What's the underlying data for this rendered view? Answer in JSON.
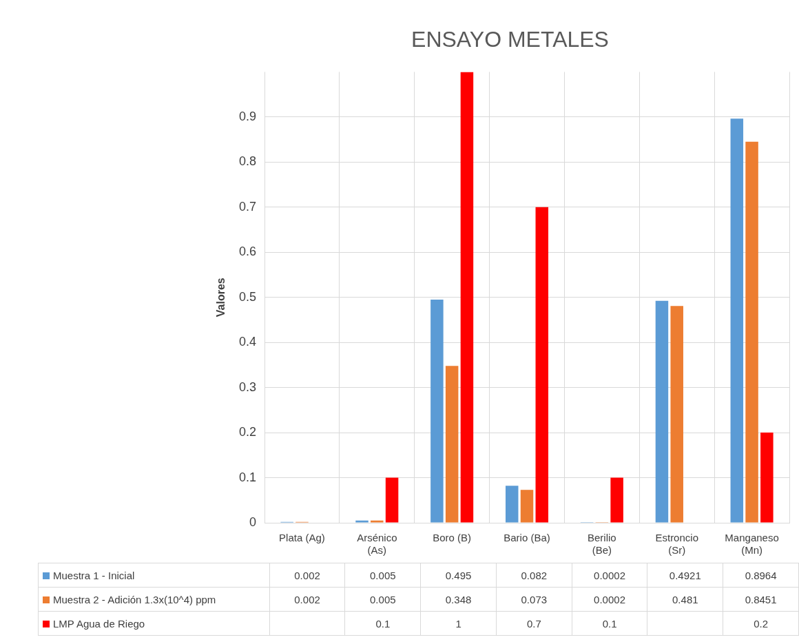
{
  "chart_data": {
    "type": "bar",
    "title": "ENSAYO METALES",
    "ylabel": "Valores",
    "categories": [
      "Plata (Ag)",
      "Arsénico (As)",
      "Boro (B)",
      "Bario (Ba)",
      "Berilio (Be)",
      "Estroncio (Sr)",
      "Manganeso (Mn)"
    ],
    "series": [
      {
        "name": "Muestra 1 - Inicial",
        "color": "#5b9bd5",
        "values": [
          0.002,
          0.005,
          0.495,
          0.082,
          0.0002,
          0.4921,
          0.8964
        ]
      },
      {
        "name": "Muestra 2 -  Adición 1.3x(10^4) ppm",
        "color": "#ed7d31",
        "values": [
          0.002,
          0.005,
          0.348,
          0.073,
          0.0002,
          0.481,
          0.8451
        ]
      },
      {
        "name": "LMP Agua de Riego",
        "color": "#ff0000",
        "values": [
          null,
          0.1,
          1,
          0.7,
          0.1,
          null,
          0.2
        ]
      }
    ],
    "ylim": [
      0,
      1
    ],
    "yticks": [
      0,
      0.1,
      0.2,
      0.3,
      0.4,
      0.5,
      0.6,
      0.7,
      0.8,
      0.9
    ],
    "grid": true,
    "legend": "bottom",
    "data_labels": true
  }
}
